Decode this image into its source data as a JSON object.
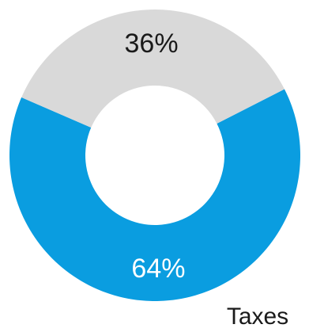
{
  "chart_data": {
    "type": "pie",
    "variant": "donut",
    "category": "Taxes",
    "slices": [
      {
        "value": 64,
        "label": "64%",
        "color": "#0a9de0",
        "label_color": "#ffffff"
      },
      {
        "value": 36,
        "label": "36%",
        "color": "#d9d9d9",
        "label_color": "#1a1a1a"
      }
    ],
    "start_angle_deg": 63,
    "direction": "clockwise"
  }
}
